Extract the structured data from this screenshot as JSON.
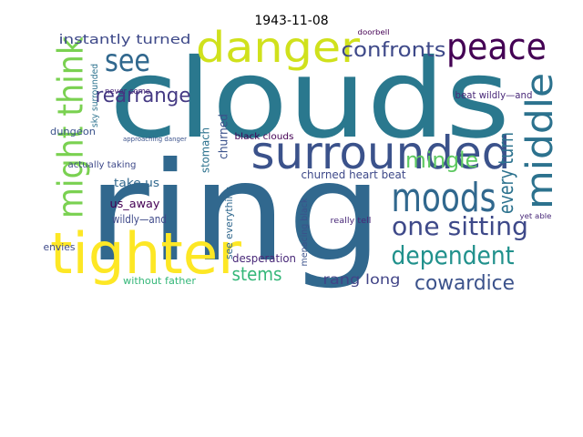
{
  "chart_data": {
    "type": "wordcloud",
    "title": "1943-11-08",
    "words": [
      {
        "text": "clouds",
        "color": "#2a788e"
      },
      {
        "text": "ring",
        "color": "#31688e"
      },
      {
        "text": "tighter",
        "color": "#fde725"
      },
      {
        "text": "surrounded",
        "color": "#3b528b"
      },
      {
        "text": "danger",
        "color": "#d0e11c"
      },
      {
        "text": "peace",
        "color": "#440154"
      },
      {
        "text": "see",
        "color": "#31688e"
      },
      {
        "text": "might think",
        "color": "#7ad151"
      },
      {
        "text": "middle",
        "color": "#2c728e"
      },
      {
        "text": "moods",
        "color": "#31688e"
      },
      {
        "text": "one sitting",
        "color": "#3e4989"
      },
      {
        "text": "dependent",
        "color": "#21918c"
      },
      {
        "text": "cowardice",
        "color": "#3b528b"
      },
      {
        "text": "confronts",
        "color": "#3e4989"
      },
      {
        "text": "rearrange",
        "color": "#443983"
      },
      {
        "text": "mingle",
        "color": "#5ec962"
      },
      {
        "text": "every turn",
        "color": "#2c728e"
      },
      {
        "text": "stems",
        "color": "#35b779"
      },
      {
        "text": "rang long",
        "color": "#414487"
      },
      {
        "text": "instantly turned",
        "color": "#3e4989"
      },
      {
        "text": "beat wildly—and",
        "color": "#482878"
      },
      {
        "text": "churned heart beat",
        "color": "#3e4989"
      },
      {
        "text": "take us",
        "color": "#31688e"
      },
      {
        "text": "us_away",
        "color": "#440154"
      },
      {
        "text": "wildly—and",
        "color": "#3e4989"
      },
      {
        "text": "dungeon",
        "color": "#3b528b"
      },
      {
        "text": "desperation",
        "color": "#482878"
      },
      {
        "text": "without father",
        "color": "#35b779"
      },
      {
        "text": "black clouds",
        "color": "#440154"
      },
      {
        "text": "stomach",
        "color": "#2c728e"
      },
      {
        "text": "churned",
        "color": "#3b528b"
      },
      {
        "text": "see everything",
        "color": "#31688e"
      },
      {
        "text": "envies",
        "color": "#3e4989"
      },
      {
        "text": "sky surrounded",
        "color": "#2c728e"
      },
      {
        "text": "never come",
        "color": "#482878"
      },
      {
        "text": "menacing black",
        "color": "#3b528b"
      },
      {
        "text": "really tell",
        "color": "#482878"
      },
      {
        "text": "actually taking",
        "color": "#3e4989"
      },
      {
        "text": "doorbell",
        "color": "#440154"
      },
      {
        "text": "approaching danger",
        "color": "#3b528b"
      },
      {
        "text": "yet able",
        "color": "#482878"
      }
    ]
  }
}
